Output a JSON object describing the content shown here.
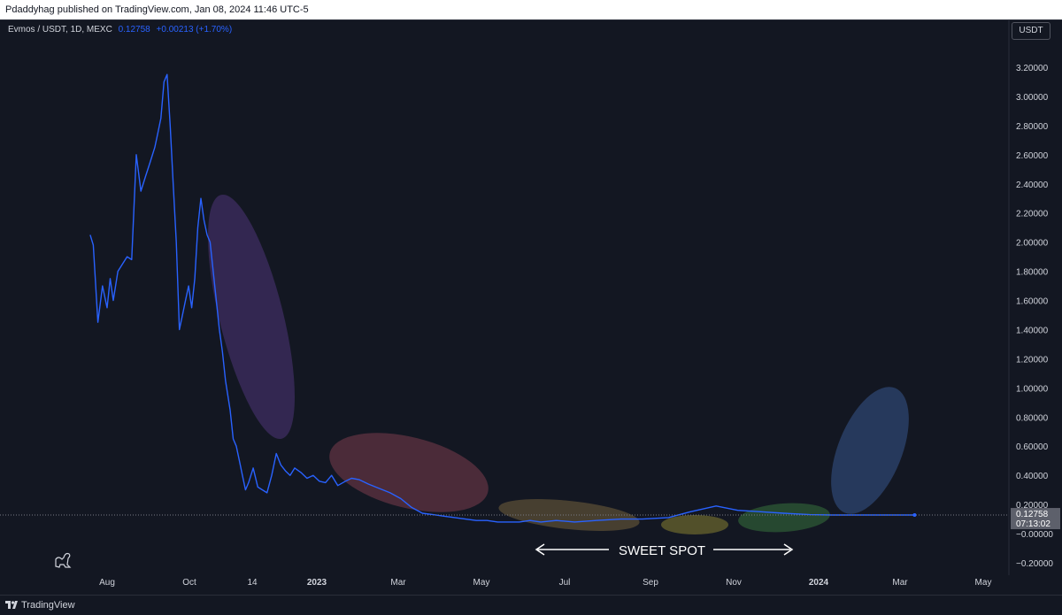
{
  "header": {
    "published_text": "Pdaddyhag published on TradingView.com, Jan 08, 2024 11:46 UTC-5"
  },
  "legend": {
    "symbol": "Evmos / USDT, 1D, MEXC",
    "price": "0.12758",
    "change": "+0.00213 (+1.70%)"
  },
  "currency_button": "USDT",
  "footer": {
    "brand": "TradingView"
  },
  "price_badge": {
    "price": "0.12758",
    "countdown": "07:13:02"
  },
  "annotation": {
    "label": "SWEET SPOT"
  },
  "colors": {
    "background": "#131722",
    "line": "#2962ff",
    "ellipse_purple": "#5b3b8c",
    "ellipse_red": "#7a3d4d",
    "ellipse_orange": "#6b5a3a",
    "ellipse_yellow": "#6e6a2e",
    "ellipse_green": "#2e5a35",
    "ellipse_blue": "#2a3f66"
  },
  "chart_data": {
    "type": "line",
    "title": "",
    "xlabel": "",
    "ylabel": "",
    "y_axis_ticks": [
      "3.20000",
      "3.00000",
      "2.80000",
      "2.60000",
      "2.40000",
      "2.20000",
      "2.00000",
      "1.80000",
      "1.60000",
      "1.40000",
      "1.20000",
      "1.00000",
      "0.80000",
      "0.60000",
      "0.40000",
      "0.20000",
      "−0.00000",
      "−0.20000"
    ],
    "x_axis_ticks": [
      "Aug",
      "Oct",
      "14",
      "2023",
      "Mar",
      "May",
      "Jul",
      "Sep",
      "Nov",
      "2024",
      "Mar",
      "May"
    ],
    "ylim": [
      -0.3,
      3.45
    ],
    "grid": false,
    "series": [
      {
        "x": [
          "2022-07-21",
          "2022-07-23",
          "2022-07-26",
          "2022-07-29",
          "2022-08-01",
          "2022-08-03",
          "2022-08-05",
          "2022-08-08",
          "2022-08-11",
          "2022-08-14",
          "2022-08-17",
          "2022-08-20",
          "2022-08-23",
          "2022-08-26",
          "2022-08-29",
          "2022-09-01",
          "2022-09-03",
          "2022-09-05",
          "2022-09-07",
          "2022-09-09",
          "2022-09-11",
          "2022-09-13",
          "2022-09-15",
          "2022-09-17",
          "2022-09-19",
          "2022-09-21",
          "2022-09-23",
          "2022-09-25",
          "2022-09-27",
          "2022-09-29",
          "2022-10-01",
          "2022-10-03",
          "2022-10-05",
          "2022-10-07",
          "2022-10-09",
          "2022-10-11",
          "2022-10-13",
          "2022-10-15",
          "2022-10-17",
          "2022-10-20",
          "2022-10-22",
          "2022-10-24",
          "2022-10-26",
          "2022-10-28",
          "2022-10-30",
          "2022-11-01",
          "2022-11-04",
          "2022-11-07",
          "2022-11-10",
          "2022-11-13",
          "2022-11-16",
          "2022-11-19",
          "2022-11-22",
          "2022-11-25",
          "2022-11-28",
          "2022-12-01",
          "2022-12-05",
          "2022-12-09",
          "2022-12-13",
          "2022-12-17",
          "2022-12-21",
          "2022-12-25",
          "2022-12-29",
          "2023-01-03",
          "2023-01-07",
          "2023-01-12",
          "2023-01-18",
          "2023-01-25",
          "2023-02-01",
          "2023-02-08",
          "2023-02-15",
          "2023-02-22",
          "2023-03-01",
          "2023-03-08",
          "2023-03-15",
          "2023-03-22",
          "2023-03-29",
          "2023-04-05",
          "2023-04-12",
          "2023-04-19",
          "2023-04-26",
          "2023-05-03",
          "2023-05-10",
          "2023-05-20",
          "2023-06-01",
          "2023-06-15",
          "2023-07-01",
          "2023-07-15",
          "2023-08-01",
          "2023-08-15",
          "2023-09-01",
          "2023-09-15",
          "2023-10-01",
          "2023-10-15",
          "2023-11-01",
          "2023-11-15",
          "2023-12-01",
          "2023-12-08",
          "2023-12-15",
          "2023-12-22",
          "2024-01-01",
          "2024-01-08"
        ],
        "y": [
          2.05,
          1.98,
          1.45,
          1.7,
          1.55,
          1.75,
          1.6,
          1.8,
          1.85,
          1.9,
          1.88,
          2.6,
          2.35,
          2.45,
          2.55,
          2.65,
          2.75,
          2.85,
          3.1,
          3.15,
          2.8,
          2.4,
          2.0,
          1.4,
          1.5,
          1.6,
          1.7,
          1.55,
          1.75,
          2.1,
          2.3,
          2.15,
          2.05,
          2.0,
          1.8,
          1.6,
          1.4,
          1.25,
          1.05,
          0.85,
          0.65,
          0.6,
          0.5,
          0.4,
          0.3,
          0.35,
          0.45,
          0.32,
          0.3,
          0.28,
          0.4,
          0.55,
          0.47,
          0.43,
          0.4,
          0.45,
          0.42,
          0.38,
          0.4,
          0.36,
          0.35,
          0.4,
          0.33,
          0.36,
          0.38,
          0.37,
          0.34,
          0.31,
          0.28,
          0.24,
          0.18,
          0.14,
          0.13,
          0.12,
          0.11,
          0.1,
          0.09,
          0.09,
          0.08,
          0.08,
          0.08,
          0.09,
          0.08,
          0.09,
          0.08,
          0.09,
          0.1,
          0.1,
          0.11,
          0.15,
          0.19,
          0.16,
          0.15,
          0.14,
          0.13,
          0.128,
          0.12758,
          0.12758,
          0.12758,
          0.12758,
          0.12758,
          0.12758
        ]
      }
    ]
  }
}
